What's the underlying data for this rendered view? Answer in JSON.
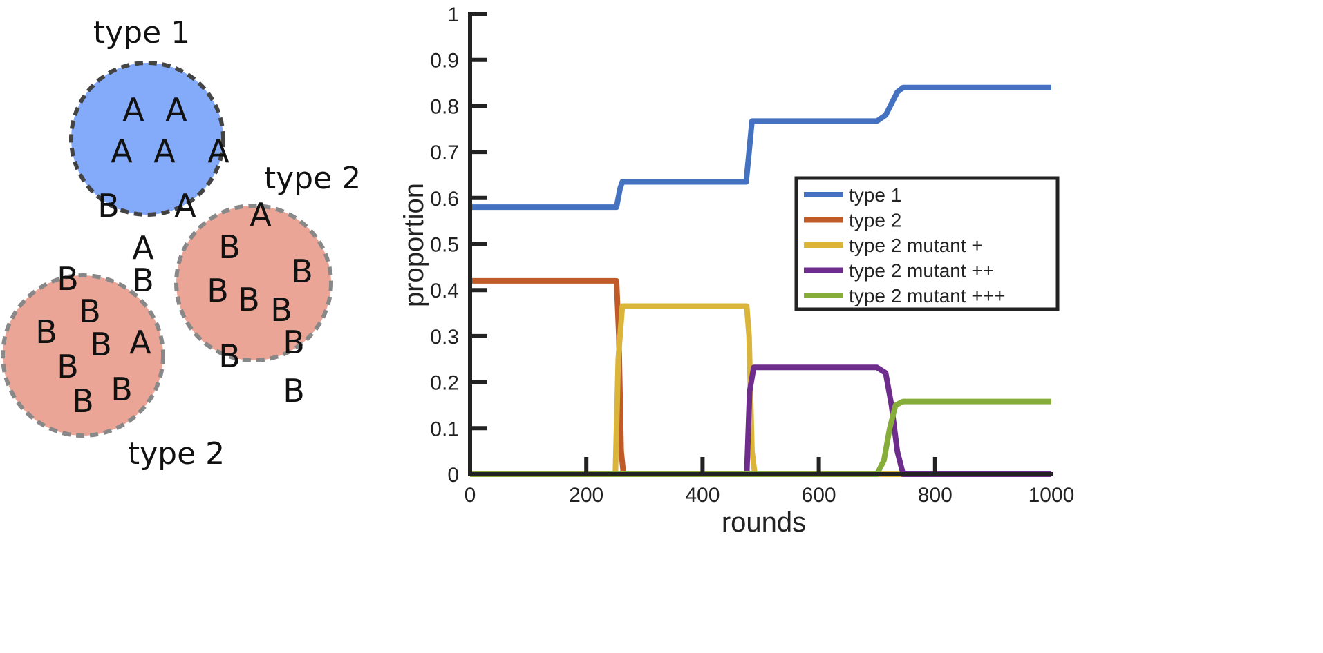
{
  "diagram": {
    "labels": [
      "type 1",
      "type 2",
      "type 2"
    ],
    "groups": [
      {
        "label": "type 1",
        "fill": "#84aafa",
        "stroke": "#444444",
        "letters": [
          "A",
          "A",
          "A",
          "A",
          "A",
          "B",
          "A",
          "A",
          "B"
        ]
      },
      {
        "label": "type 2",
        "fill": "#eba596",
        "stroke": "#888888",
        "letters": [
          "B",
          "B",
          "B",
          "B",
          "A",
          "B",
          "B",
          "B"
        ]
      },
      {
        "label": "type 2",
        "fill": "#eba596",
        "stroke": "#888888",
        "letters": [
          "A",
          "B",
          "B",
          "B",
          "B",
          "B",
          "B",
          "B",
          "B"
        ]
      }
    ]
  },
  "chart_data": {
    "type": "line",
    "xlabel": "rounds",
    "ylabel": "proportion",
    "xlim": [
      0,
      1000
    ],
    "ylim": [
      0,
      1
    ],
    "xticks": [
      "0",
      "200",
      "400",
      "600",
      "800",
      "1000"
    ],
    "yticks": [
      "0",
      "0.1",
      "0.2",
      "0.3",
      "0.4",
      "0.5",
      "0.6",
      "0.7",
      "0.8",
      "0.9",
      "1"
    ],
    "grid": false,
    "legend_position": "center-right",
    "series": [
      {
        "name": "type 1",
        "color": "#4472c0",
        "x": [
          0,
          252,
          258,
          262,
          475,
          480,
          485,
          700,
          715,
          735,
          745,
          1000
        ],
        "y": [
          0.58,
          0.58,
          0.62,
          0.635,
          0.635,
          0.7,
          0.767,
          0.767,
          0.78,
          0.83,
          0.84,
          0.84
        ]
      },
      {
        "name": "type 2",
        "color": "#c05a26",
        "x": [
          0,
          252,
          256,
          260,
          264,
          1000
        ],
        "y": [
          0.42,
          0.42,
          0.3,
          0.05,
          0,
          0
        ]
      },
      {
        "name": "type 2 mutant +",
        "color": "#dbb43a",
        "x": [
          0,
          250,
          255,
          262,
          476,
          480,
          485,
          490,
          1000
        ],
        "y": [
          0,
          0,
          0.25,
          0.365,
          0.365,
          0.3,
          0.05,
          0,
          0
        ]
      },
      {
        "name": "type 2 mutant ++",
        "color": "#6e2c8c",
        "x": [
          0,
          476,
          481,
          488,
          700,
          715,
          725,
          735,
          745,
          1000
        ],
        "y": [
          0,
          0,
          0.18,
          0.232,
          0.232,
          0.22,
          0.15,
          0.05,
          0,
          0
        ]
      },
      {
        "name": "type 2 mutant +++",
        "color": "#86ad3a",
        "x": [
          0,
          700,
          712,
          722,
          732,
          745,
          1000
        ],
        "y": [
          0,
          0,
          0.03,
          0.1,
          0.15,
          0.158,
          0.158
        ]
      }
    ]
  }
}
